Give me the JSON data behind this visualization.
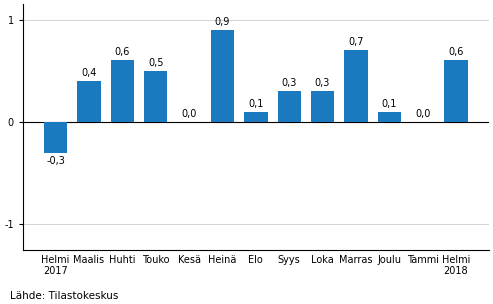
{
  "categories": [
    "Helmi\n2017",
    "Maalis",
    "Huhti",
    "Touko",
    "Kesä",
    "Heinä",
    "Elo",
    "Syys",
    "Loka",
    "Marras",
    "Joulu",
    "Tammi",
    "Helmi\n2018"
  ],
  "values": [
    -0.3,
    0.4,
    0.6,
    0.5,
    0.0,
    0.9,
    0.1,
    0.3,
    0.3,
    0.7,
    0.1,
    0.0,
    0.6
  ],
  "bar_color": "#1b7abf",
  "ylim": [
    -1.25,
    1.15
  ],
  "yticks": [
    -1,
    0,
    1
  ],
  "source_text": "Lähde: Tilastokeskus",
  "label_fontsize": 7.0,
  "tick_fontsize": 7.0,
  "source_fontsize": 7.5
}
